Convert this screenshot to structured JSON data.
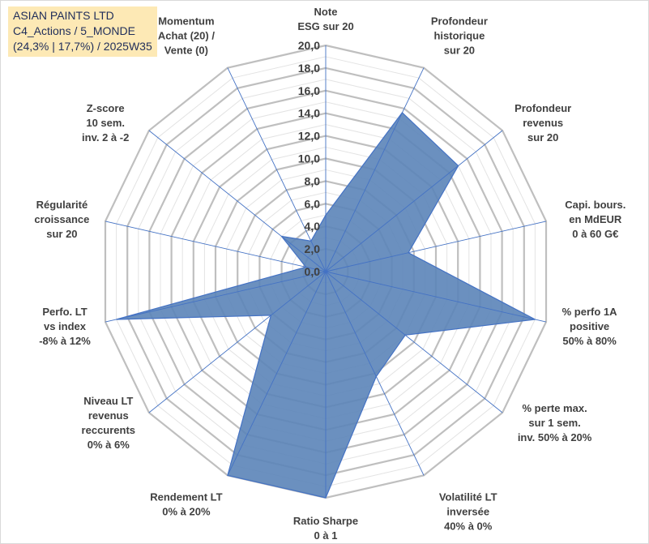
{
  "chart_data": {
    "type": "radar",
    "title_lines": [
      "ASIAN PAINTS LTD",
      "C4_Actions / 5_MONDE",
      "(24,3% | 17,7%) / 2025W35"
    ],
    "rmax": 20,
    "ticks": [
      "0,0",
      "2,0",
      "4,0",
      "6,0",
      "8,0",
      "10,0",
      "12,0",
      "14,0",
      "16,0",
      "18,0",
      "20,0"
    ],
    "axes": [
      {
        "label": [
          "Note",
          "ESG sur 20"
        ],
        "value": 5.0
      },
      {
        "label": [
          "Profondeur",
          "historique",
          "sur 20"
        ],
        "value": 15.6
      },
      {
        "label": [
          "Profondeur",
          "revenus",
          "sur 20"
        ],
        "value": 15.0
      },
      {
        "label": [
          "Capi. bours.",
          "en MdEUR",
          "0 à 60 G€"
        ],
        "value": 7.5
      },
      {
        "label": [
          "% perfo 1A",
          "positive",
          "50% à 80%"
        ],
        "value": 19.0
      },
      {
        "label": [
          "% perte max.",
          "sur 1 sem.",
          "inv. 50% à 20%"
        ],
        "value": 9.0
      },
      {
        "label": [
          "Volatilité LT",
          "inversée",
          "40% à 0%"
        ],
        "value": 10.3
      },
      {
        "label": [
          "Ratio Sharpe",
          "0 à 1"
        ],
        "value": 20.0
      },
      {
        "label": [
          "Rendement LT",
          "0% à 20%"
        ],
        "value": 20.0
      },
      {
        "label": [
          "Niveau LT",
          "revenus",
          "reccurents",
          "0% à 6%"
        ],
        "value": 6.2
      },
      {
        "label": [
          "Perfo. LT",
          "vs index",
          "-8% à 12%"
        ],
        "value": 19.0
      },
      {
        "label": [
          "Régularité",
          "croissance",
          "sur 20"
        ],
        "value": 1.8
      },
      {
        "label": [
          "Z-score",
          "10 sem.",
          "inv. 2 à -2"
        ],
        "value": 5.0
      },
      {
        "label": [
          "Momentum",
          "Achat (20) /",
          "Vente (0)"
        ],
        "value": 3.0
      }
    ],
    "colors": {
      "fill": "#5b84b8",
      "stroke": "#4472c4",
      "grid_major": "#bfbfbf",
      "grid_minor": "#e3e3e3",
      "spoke": "#4472c4",
      "text": "#404040"
    }
  }
}
